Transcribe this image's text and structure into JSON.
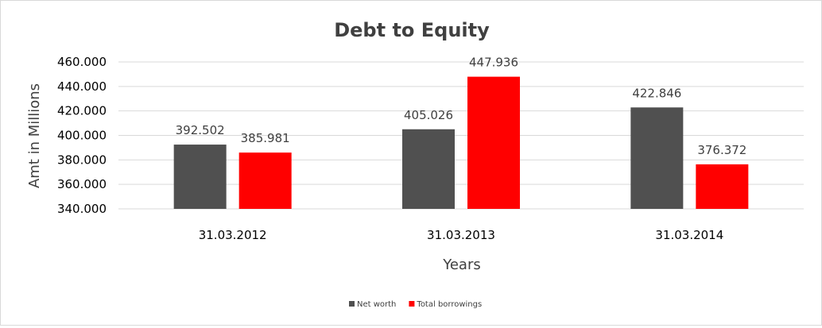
{
  "chart_data": {
    "type": "bar",
    "title": "Debt to Equity",
    "xlabel": "Years",
    "ylabel": "Amt in Millions",
    "categories": [
      "31.03.2012",
      "31.03.2013",
      "31.03.2014"
    ],
    "series": [
      {
        "name": "Net worth",
        "values": [
          392.502,
          405.026,
          422.846
        ],
        "color": "#505050"
      },
      {
        "name": "Total borrowings",
        "values": [
          385.981,
          447.936,
          376.372
        ],
        "color": "#ff0000"
      }
    ],
    "data_labels": [
      [
        "392.502",
        "405.026",
        "422.846"
      ],
      [
        "385.981",
        "447.936",
        "376.372"
      ]
    ],
    "ylim": [
      340,
      460
    ],
    "ytick_values": [
      340,
      360,
      380,
      400,
      420,
      440,
      460
    ],
    "ytick_labels": [
      "340.000",
      "360.000",
      "380.000",
      "400.000",
      "420.000",
      "440.000",
      "460.000"
    ],
    "grid": true,
    "legend_position": "bottom"
  }
}
